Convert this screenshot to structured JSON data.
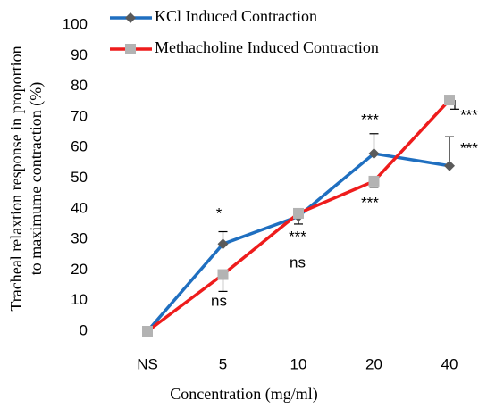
{
  "chart_data": {
    "type": "line",
    "y_label": [
      "Tracheal relaxtion response in proportion",
      "to maximume contraction (%)"
    ],
    "x_label": "Concentration (mg/ml)",
    "categories": [
      "NS",
      "5",
      "10",
      "20",
      "40"
    ],
    "series": [
      {
        "name": "KCl Induced Contraction",
        "color": "#1f6fc0",
        "marker_color": "#5a5a5a",
        "marker": "diamond",
        "values": [
          0,
          28.5,
          37.5,
          58,
          54
        ],
        "errors": [
          0,
          4,
          2,
          6.5,
          9.5
        ],
        "error_direction": "up"
      },
      {
        "name": "Methacholine Induced Contraction",
        "color": "#ee1c1c",
        "marker_color": "#b3b3b3",
        "marker": "square",
        "values": [
          0,
          18.5,
          38.5,
          49,
          75.5
        ],
        "errors": [
          0,
          5.5,
          3.5,
          2,
          3
        ],
        "error_direction": "down"
      }
    ],
    "annotations": [
      "*",
      "ns",
      "ns",
      "***",
      "***",
      "***",
      "***",
      "***"
    ],
    "ylim": [
      0,
      100
    ],
    "yticks": [
      0,
      10,
      20,
      30,
      40,
      50,
      60,
      70,
      80,
      90,
      100
    ],
    "legend": "top-left"
  }
}
